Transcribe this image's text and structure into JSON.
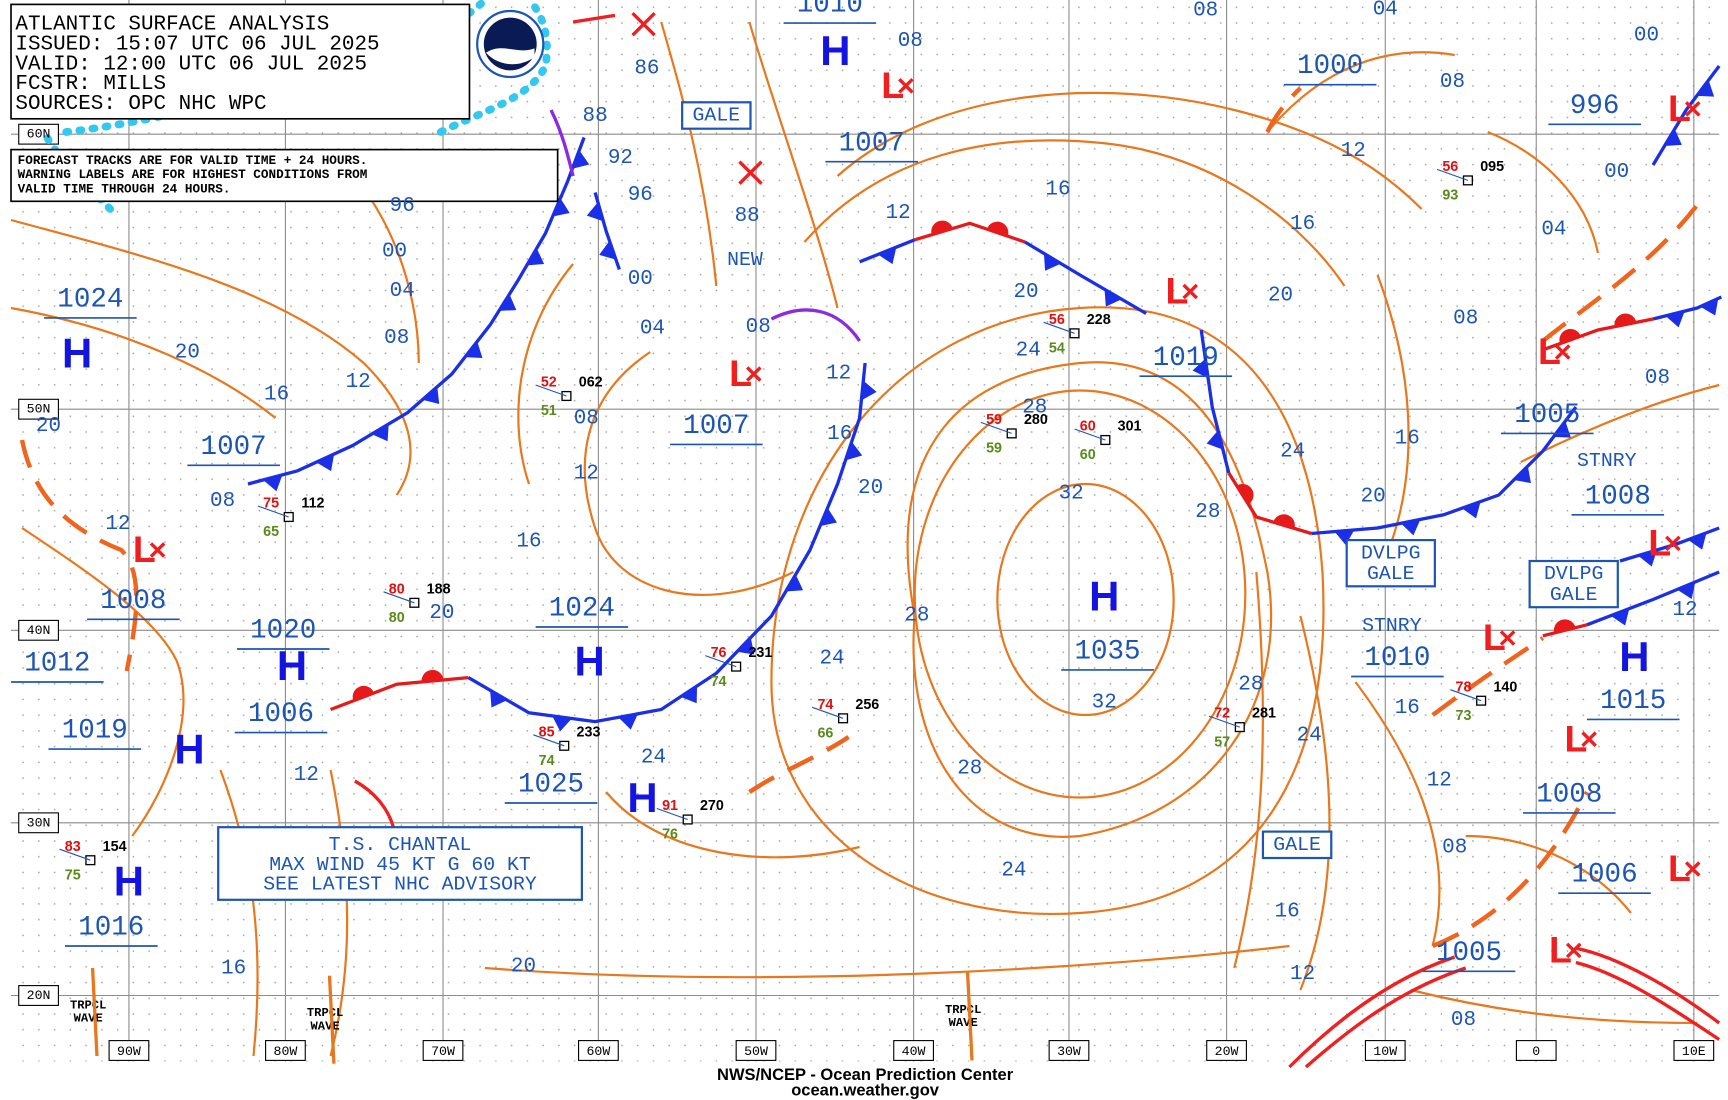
{
  "header": {
    "lines": [
      "ATLANTIC SURFACE ANALYSIS",
      "ISSUED: 15:07 UTC 06 JUL 2025",
      "VALID:  12:00 UTC 06 JUL 2025",
      "FCSTR:  MILLS",
      "SOURCES: OPC NHC WPC"
    ]
  },
  "notice": {
    "lines": [
      "FORECAST TRACKS ARE FOR VALID TIME + 24 HOURS.",
      "WARNING LABELS ARE FOR HIGHEST CONDITIONS FROM",
      "VALID TIME THROUGH 24 HOURS."
    ]
  },
  "longitudes": [
    "90W",
    "80W",
    "70W",
    "60W",
    "50W",
    "40W",
    "30W",
    "20W",
    "10W",
    "0",
    "10E"
  ],
  "latitudes": [
    "60N",
    "50N",
    "40N",
    "30N",
    "20N"
  ],
  "centers": [
    {
      "symbol": "H",
      "pressure": "1024"
    },
    {
      "symbol": "H",
      "pressure": "1020"
    },
    {
      "symbol": "H",
      "pressure": "1019"
    },
    {
      "symbol": "H",
      "pressure": "1016"
    },
    {
      "symbol": "H",
      "pressure": "1024"
    },
    {
      "symbol": "H",
      "pressure": "1025"
    },
    {
      "symbol": "H",
      "pressure": "1035"
    },
    {
      "symbol": "H",
      "pressure": "1010"
    },
    {
      "symbol": "H",
      "pressure": "1015"
    },
    {
      "symbol": "L",
      "pressure": "1008"
    },
    {
      "symbol": "L",
      "pressure": "1007"
    },
    {
      "symbol": "L",
      "pressure": "1007"
    },
    {
      "symbol": "L",
      "pressure": "1019"
    },
    {
      "symbol": "L",
      "pressure": "996"
    },
    {
      "symbol": "L",
      "pressure": "1005"
    },
    {
      "symbol": "L",
      "pressure": "1008"
    },
    {
      "symbol": "L",
      "pressure": "1010"
    },
    {
      "symbol": "L",
      "pressure": "1008"
    },
    {
      "symbol": "L",
      "pressure": "1006"
    },
    {
      "symbol": "L",
      "pressure": "1005"
    }
  ],
  "pressure_labels": [
    "1007",
    "1012",
    "1006",
    "1000"
  ],
  "isobar_labels": [
    "96",
    "00",
    "04",
    "08",
    "12",
    "16",
    "20",
    "20",
    "12",
    "08",
    "88",
    "92",
    "96",
    "00",
    "04",
    "08",
    "12",
    "16",
    "20",
    "86",
    "88",
    "08",
    "12",
    "16",
    "20",
    "24",
    "24",
    "12",
    "16",
    "20",
    "24",
    "28",
    "32",
    "28",
    "32",
    "28",
    "24",
    "20",
    "16",
    "12",
    "08",
    "08",
    "04",
    "08",
    "12",
    "16",
    "20",
    "24",
    "28",
    "20",
    "16",
    "08",
    "04",
    "00",
    "00",
    "08",
    "12",
    "16",
    "12",
    "24",
    "28",
    "08",
    "16",
    "12",
    "08"
  ],
  "warnings": [
    "GALE",
    "GALE",
    "DVLPG GALE",
    "DVLPG GALE"
  ],
  "labels": [
    "NEW",
    "STNRY",
    "STNRY"
  ],
  "storm": {
    "lines": [
      "T.S. CHANTAL",
      "MAX WIND 45 KT G 60 KT",
      "SEE LATEST NHC ADVISORY"
    ]
  },
  "waves": [
    "TRPCL WAVE",
    "TRPCL WAVE",
    "TRPCL WAVE"
  ],
  "stations": [
    {
      "temp": "75",
      "dew": "65",
      "pressure": "112"
    },
    {
      "temp": "52",
      "dew": "51",
      "pressure": "062"
    },
    {
      "temp": "80",
      "dew": "80",
      "pressure": "188"
    },
    {
      "temp": "85",
      "dew": "74",
      "pressure": "233"
    },
    {
      "temp": "76",
      "dew": "74",
      "pressure": "231"
    },
    {
      "temp": "74",
      "dew": "66",
      "pressure": "256"
    },
    {
      "temp": "91",
      "dew": "76",
      "pressure": "270"
    },
    {
      "temp": "60",
      "dew": "60",
      "pressure": "301"
    },
    {
      "temp": "59",
      "dew": "59",
      "pressure": "280"
    },
    {
      "temp": "56",
      "dew": "54",
      "pressure": "228"
    },
    {
      "temp": "72",
      "dew": "57",
      "pressure": "281"
    },
    {
      "temp": "56",
      "dew": "93",
      "pressure": "095"
    },
    {
      "temp": "83",
      "dew": "75",
      "pressure": "154"
    },
    {
      "temp": "78",
      "dew": "73",
      "pressure": "140"
    }
  ],
  "footer": {
    "lines": [
      "NWS/NCEP - Ocean Prediction Center",
      "ocean.weather.gov"
    ]
  }
}
